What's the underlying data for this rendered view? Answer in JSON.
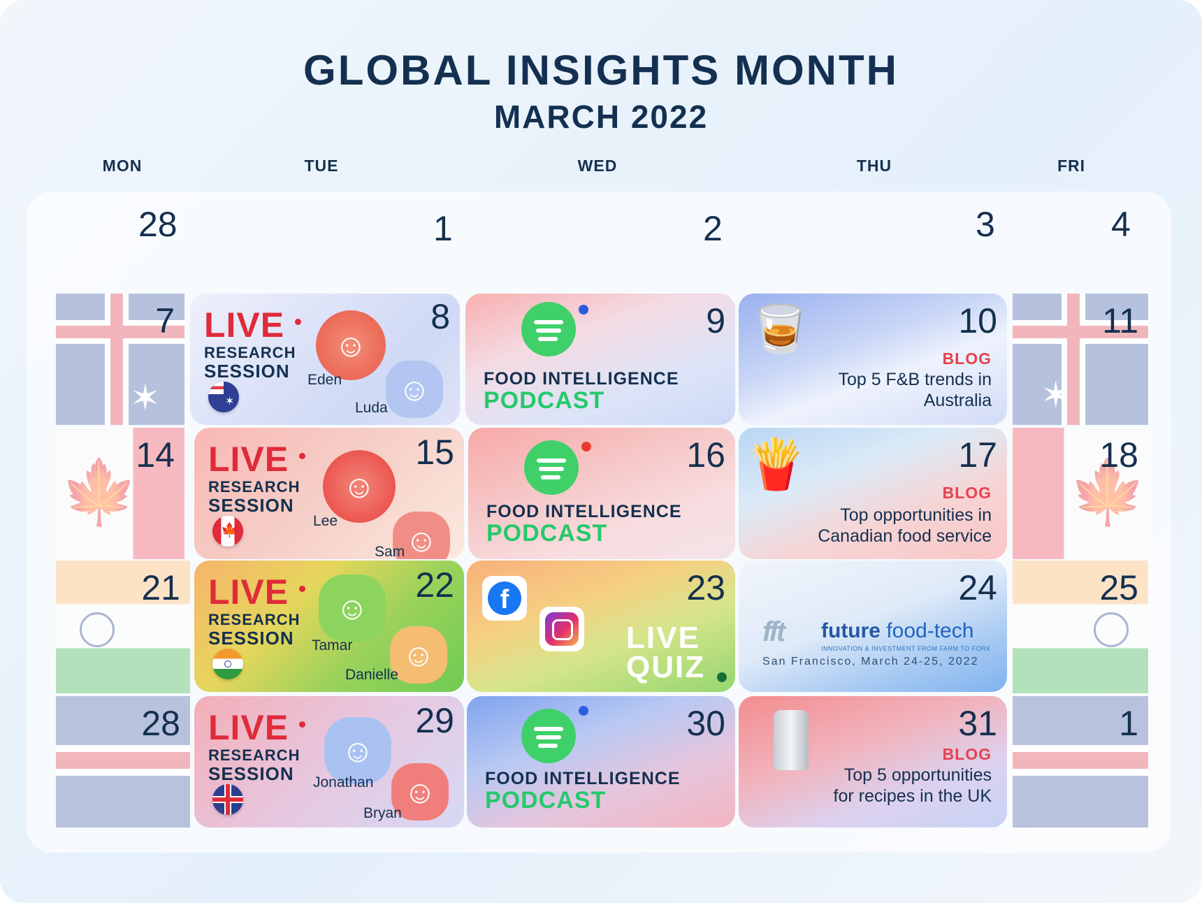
{
  "header": {
    "title": "GLOBAL INSIGHTS MONTH",
    "subtitle": "MARCH 2022"
  },
  "days": [
    "MON",
    "TUE",
    "WED",
    "THU",
    "FRI"
  ],
  "week0": [
    "28",
    "1",
    "2",
    "3",
    "4"
  ],
  "w1": {
    "mon": "7",
    "tue": {
      "num": "8",
      "live": "LIVE",
      "research": "RESEARCH",
      "session": "SESSION",
      "p1": "Eden",
      "p2": "Luda"
    },
    "wed": {
      "num": "9",
      "line1": "FOOD INTELLIGENCE",
      "line2": "PODCAST"
    },
    "thu": {
      "num": "10",
      "tag": "BLOG",
      "t1": "Top 5 F&B trends in",
      "t2": "Australia"
    },
    "fri": "11"
  },
  "w2": {
    "mon": "14",
    "tue": {
      "num": "15",
      "live": "LIVE",
      "research": "RESEARCH",
      "session": "SESSION",
      "p1": "Lee",
      "p2": "Sam"
    },
    "wed": {
      "num": "16",
      "line1": "FOOD INTELLIGENCE",
      "line2": "PODCAST"
    },
    "thu": {
      "num": "17",
      "tag": "BLOG",
      "t1": "Top opportunities in",
      "t2": "Canadian food service"
    },
    "fri": "18"
  },
  "w3": {
    "mon": "21",
    "tue": {
      "num": "22",
      "live": "LIVE",
      "research": "RESEARCH",
      "session": "SESSION",
      "p1": "Tamar",
      "p2": "Danielle"
    },
    "wed": {
      "num": "23",
      "q1": "LIVE",
      "q2": "QUIZ"
    },
    "thu": {
      "num": "24",
      "logo": "fft",
      "brand1": "future",
      "brand2": "food-tech",
      "tagline": "INNOVATION & INVESTMENT FROM FARM TO FORK",
      "event": "San Francisco, March 24-25, 2022"
    },
    "fri": "25"
  },
  "w4": {
    "mon": "28",
    "tue": {
      "num": "29",
      "live": "LIVE",
      "research": "RESEARCH",
      "session": "SESSION",
      "p1": "Jonathan",
      "p2": "Bryan"
    },
    "wed": {
      "num": "30",
      "line1": "FOOD INTELLIGENCE",
      "line2": "PODCAST"
    },
    "thu": {
      "num": "31",
      "tag": "BLOG",
      "t1": "Top 5 opportunities",
      "t2": "for recipes in the UK"
    },
    "fri": "1"
  },
  "colors": {
    "navy": "#143051",
    "live_red": "#e02b3a",
    "podcast_green": "#25c96a",
    "blog_red": "#e6424f",
    "spotify": "#3fd06a"
  },
  "icons": [
    "spotify-icon",
    "facebook-icon",
    "instagram-icon",
    "flag-australia",
    "flag-canada",
    "flag-india",
    "flag-uk",
    "cocktail-icon",
    "poutine-icon",
    "salt-shaker-icon"
  ]
}
